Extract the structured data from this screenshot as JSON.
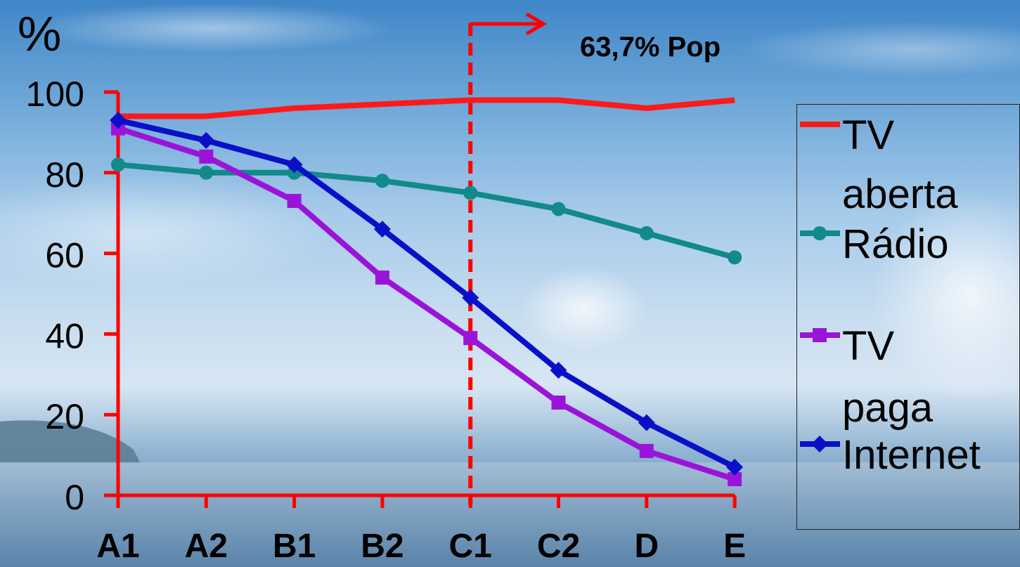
{
  "chart_data": {
    "type": "line",
    "ylabel": "%",
    "ylim": [
      0,
      100
    ],
    "yticks": [
      "100",
      "80",
      "60",
      "40",
      "20",
      "0"
    ],
    "categories": [
      "A1",
      "A2",
      "B1",
      "B2",
      "C1",
      "C2",
      "D",
      "E"
    ],
    "series": [
      {
        "name": "TV aberta",
        "color": "#ff1a1a",
        "marker": "none",
        "values": [
          94,
          94,
          96,
          97,
          98,
          98,
          96,
          98
        ]
      },
      {
        "name": "Rádio",
        "color": "#12898a",
        "marker": "circle",
        "values": [
          82,
          80,
          80,
          78,
          75,
          71,
          65,
          59
        ]
      },
      {
        "name": "TV paga",
        "color": "#9a14d8",
        "marker": "square",
        "values": [
          91,
          84,
          73,
          54,
          39,
          23,
          11,
          4
        ]
      },
      {
        "name": "Internet",
        "color": "#0a10c8",
        "marker": "diamond",
        "values": [
          93,
          88,
          82,
          66,
          49,
          31,
          18,
          7
        ]
      }
    ],
    "annotation": {
      "text": "63,7% Pop",
      "at_category": "C1"
    },
    "axis_color": "#ff0000",
    "legend_placement": "right",
    "grid": false
  }
}
